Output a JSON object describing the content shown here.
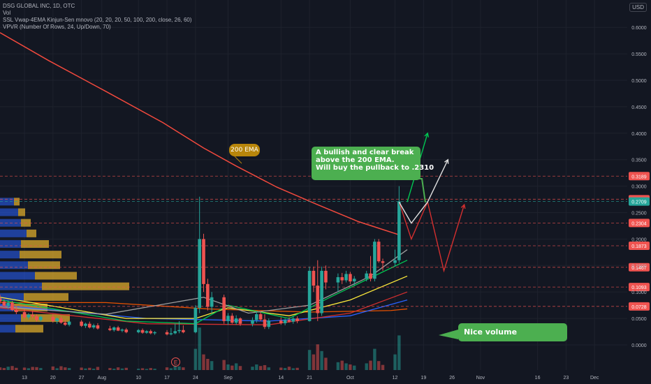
{
  "header": {
    "symbol_line": "DSG GLOBAL INC, 1D, OTC",
    "vol_label": "Vol",
    "ssl_label": "SSL Vwap-4EMA Kinjun-Sen mnovo (20, 20, 20, 50, 100, 200, close, 26, 60)",
    "vpvr_label": "VPVR (Number Of Rows, 24, Up/Down, 70)",
    "currency": "USD"
  },
  "annotations": {
    "ema_tag": "200 EMA",
    "callout_lines": [
      "A bullish and clear break",
      "above the 200 EMA.",
      "Will buy the pullback to .2310"
    ],
    "volume_note": "Nice volume",
    "earnings_marker": "E"
  },
  "colors": {
    "background": "#131722",
    "up": "#26a69a",
    "down": "#ef5350",
    "ema200": "#f2493d",
    "callout_bg": "#4caf50",
    "ema_tag_bg": "#b8860b"
  },
  "chart_data": {
    "type": "candlestick",
    "title": "DSG GLOBAL INC, 1D, OTC",
    "ylim": [
      -0.05,
      0.65
    ],
    "y_ticks": [
      "0.6000",
      "0.5500",
      "0.5000",
      "0.4500",
      "0.4000",
      "0.3500",
      "0.3000",
      "0.2500",
      "0.2000",
      "0.1500",
      "0.1000",
      "0.0500",
      "0.0000"
    ],
    "y_tick_values": [
      0.6,
      0.55,
      0.5,
      0.45,
      0.4,
      0.35,
      0.3,
      0.25,
      0.2,
      0.15,
      0.1,
      0.05,
      0.0
    ],
    "x_ticks": [
      "13",
      "20",
      "27",
      "Aug",
      "10",
      "17",
      "24",
      "Sep",
      "14",
      "21",
      "Oct",
      "12",
      "19",
      "26",
      "Nov",
      "16",
      "23",
      "Dec"
    ],
    "x_tick_days": [
      0,
      7,
      14,
      19,
      28,
      35,
      42,
      50,
      63,
      70,
      80,
      91,
      98,
      105,
      112,
      126,
      133,
      140
    ],
    "price_levels": [
      {
        "label": "0.3189",
        "value": 0.3189,
        "color": "#ef5350"
      },
      {
        "label": "0.2753",
        "value": 0.2753,
        "color": "#ef5350"
      },
      {
        "label": "0.2709",
        "value": 0.2709,
        "color": "#26a69a"
      },
      {
        "label": "0.2304",
        "value": 0.2304,
        "color": "#ef5350"
      },
      {
        "label": "0.1873",
        "value": 0.1873,
        "color": "#ef5350"
      },
      {
        "label": "0.1467",
        "value": 0.1467,
        "color": "#ef5350"
      },
      {
        "label": "0.1093",
        "value": 0.1093,
        "color": "#ef5350"
      },
      {
        "label": "0.0728",
        "value": 0.0728,
        "color": "#ef5350"
      }
    ],
    "candles": [
      {
        "d": -6,
        "o": 0.088,
        "h": 0.095,
        "l": 0.078,
        "c": 0.082
      },
      {
        "d": -5,
        "o": 0.082,
        "h": 0.086,
        "l": 0.07,
        "c": 0.074
      },
      {
        "d": -4,
        "o": 0.074,
        "h": 0.084,
        "l": 0.068,
        "c": 0.08
      },
      {
        "d": -3,
        "o": 0.08,
        "h": 0.083,
        "l": 0.064,
        "c": 0.066
      },
      {
        "d": -2,
        "o": 0.066,
        "h": 0.072,
        "l": 0.058,
        "c": 0.062
      },
      {
        "d": 0,
        "o": 0.062,
        "h": 0.068,
        "l": 0.05,
        "c": 0.052
      },
      {
        "d": 1,
        "o": 0.052,
        "h": 0.06,
        "l": 0.048,
        "c": 0.057
      },
      {
        "d": 2,
        "o": 0.057,
        "h": 0.064,
        "l": 0.05,
        "c": 0.054
      },
      {
        "d": 3,
        "o": 0.054,
        "h": 0.058,
        "l": 0.044,
        "c": 0.047
      },
      {
        "d": 4,
        "o": 0.047,
        "h": 0.055,
        "l": 0.044,
        "c": 0.053
      },
      {
        "d": 7,
        "o": 0.053,
        "h": 0.058,
        "l": 0.042,
        "c": 0.045
      },
      {
        "d": 8,
        "o": 0.045,
        "h": 0.052,
        "l": 0.04,
        "c": 0.05
      },
      {
        "d": 9,
        "o": 0.05,
        "h": 0.054,
        "l": 0.04,
        "c": 0.042
      },
      {
        "d": 10,
        "o": 0.042,
        "h": 0.048,
        "l": 0.036,
        "c": 0.038
      },
      {
        "d": 11,
        "o": 0.038,
        "h": 0.046,
        "l": 0.035,
        "c": 0.044
      },
      {
        "d": 14,
        "o": 0.044,
        "h": 0.047,
        "l": 0.034,
        "c": 0.036
      },
      {
        "d": 15,
        "o": 0.036,
        "h": 0.042,
        "l": 0.032,
        "c": 0.04
      },
      {
        "d": 16,
        "o": 0.04,
        "h": 0.044,
        "l": 0.031,
        "c": 0.033
      },
      {
        "d": 17,
        "o": 0.033,
        "h": 0.04,
        "l": 0.03,
        "c": 0.037
      },
      {
        "d": 18,
        "o": 0.037,
        "h": 0.041,
        "l": 0.029,
        "c": 0.031
      },
      {
        "d": 21,
        "o": 0.031,
        "h": 0.036,
        "l": 0.026,
        "c": 0.028
      },
      {
        "d": 22,
        "o": 0.028,
        "h": 0.035,
        "l": 0.025,
        "c": 0.033
      },
      {
        "d": 23,
        "o": 0.033,
        "h": 0.036,
        "l": 0.026,
        "c": 0.027
      },
      {
        "d": 24,
        "o": 0.027,
        "h": 0.031,
        "l": 0.024,
        "c": 0.029
      },
      {
        "d": 25,
        "o": 0.029,
        "h": 0.032,
        "l": 0.022,
        "c": 0.024
      },
      {
        "d": 28,
        "o": 0.024,
        "h": 0.03,
        "l": 0.022,
        "c": 0.028
      },
      {
        "d": 29,
        "o": 0.028,
        "h": 0.031,
        "l": 0.021,
        "c": 0.023
      },
      {
        "d": 30,
        "o": 0.023,
        "h": 0.028,
        "l": 0.021,
        "c": 0.026
      },
      {
        "d": 31,
        "o": 0.026,
        "h": 0.029,
        "l": 0.02,
        "c": 0.022
      },
      {
        "d": 32,
        "o": 0.022,
        "h": 0.026,
        "l": 0.019,
        "c": 0.024
      },
      {
        "d": 35,
        "o": 0.024,
        "h": 0.028,
        "l": 0.018,
        "c": 0.02
      },
      {
        "d": 36,
        "o": 0.02,
        "h": 0.032,
        "l": 0.018,
        "c": 0.022
      },
      {
        "d": 37,
        "o": 0.022,
        "h": 0.04,
        "l": 0.02,
        "c": 0.026
      },
      {
        "d": 38,
        "o": 0.026,
        "h": 0.045,
        "l": 0.022,
        "c": 0.028
      },
      {
        "d": 39,
        "o": 0.028,
        "h": 0.037,
        "l": 0.022,
        "c": 0.024
      },
      {
        "d": 42,
        "o": 0.024,
        "h": 0.075,
        "l": 0.022,
        "c": 0.07
      },
      {
        "d": 43,
        "o": 0.07,
        "h": 0.28,
        "l": 0.06,
        "c": 0.2
      },
      {
        "d": 44,
        "o": 0.2,
        "h": 0.21,
        "l": 0.1,
        "c": 0.115
      },
      {
        "d": 45,
        "o": 0.115,
        "h": 0.125,
        "l": 0.065,
        "c": 0.072
      },
      {
        "d": 46,
        "o": 0.072,
        "h": 0.1,
        "l": 0.06,
        "c": 0.09
      },
      {
        "d": 49,
        "o": 0.09,
        "h": 0.095,
        "l": 0.04,
        "c": 0.045
      },
      {
        "d": 50,
        "o": 0.045,
        "h": 0.06,
        "l": 0.038,
        "c": 0.055
      },
      {
        "d": 51,
        "o": 0.055,
        "h": 0.06,
        "l": 0.04,
        "c": 0.042
      },
      {
        "d": 52,
        "o": 0.042,
        "h": 0.056,
        "l": 0.038,
        "c": 0.05
      },
      {
        "d": 53,
        "o": 0.05,
        "h": 0.052,
        "l": 0.036,
        "c": 0.04
      },
      {
        "d": 56,
        "o": 0.04,
        "h": 0.052,
        "l": 0.035,
        "c": 0.047
      },
      {
        "d": 57,
        "o": 0.047,
        "h": 0.062,
        "l": 0.042,
        "c": 0.058
      },
      {
        "d": 58,
        "o": 0.058,
        "h": 0.062,
        "l": 0.045,
        "c": 0.048
      },
      {
        "d": 59,
        "o": 0.048,
        "h": 0.058,
        "l": 0.03,
        "c": 0.034
      },
      {
        "d": 60,
        "o": 0.034,
        "h": 0.05,
        "l": 0.03,
        "c": 0.046
      },
      {
        "d": 63,
        "o": 0.046,
        "h": 0.052,
        "l": 0.038,
        "c": 0.041
      },
      {
        "d": 64,
        "o": 0.041,
        "h": 0.05,
        "l": 0.037,
        "c": 0.047
      },
      {
        "d": 65,
        "o": 0.047,
        "h": 0.052,
        "l": 0.042,
        "c": 0.044
      },
      {
        "d": 66,
        "o": 0.044,
        "h": 0.054,
        "l": 0.04,
        "c": 0.05
      },
      {
        "d": 67,
        "o": 0.05,
        "h": 0.054,
        "l": 0.041,
        "c": 0.045
      },
      {
        "d": 70,
        "o": 0.045,
        "h": 0.148,
        "l": 0.044,
        "c": 0.14
      },
      {
        "d": 71,
        "o": 0.14,
        "h": 0.148,
        "l": 0.1,
        "c": 0.112
      },
      {
        "d": 72,
        "o": 0.112,
        "h": 0.16,
        "l": 0.045,
        "c": 0.06
      },
      {
        "d": 73,
        "o": 0.06,
        "h": 0.148,
        "l": 0.055,
        "c": 0.14
      },
      {
        "d": 74,
        "o": 0.14,
        "h": 0.15,
        "l": 0.105,
        "c": 0.118
      },
      {
        "d": 77,
        "o": 0.118,
        "h": 0.135,
        "l": 0.1,
        "c": 0.128
      },
      {
        "d": 78,
        "o": 0.128,
        "h": 0.136,
        "l": 0.115,
        "c": 0.122
      },
      {
        "d": 79,
        "o": 0.122,
        "h": 0.14,
        "l": 0.118,
        "c": 0.134
      },
      {
        "d": 80,
        "o": 0.134,
        "h": 0.138,
        "l": 0.115,
        "c": 0.12
      },
      {
        "d": 81,
        "o": 0.12,
        "h": 0.13,
        "l": 0.112,
        "c": 0.125
      },
      {
        "d": 84,
        "o": 0.125,
        "h": 0.14,
        "l": 0.12,
        "c": 0.135
      },
      {
        "d": 85,
        "o": 0.135,
        "h": 0.168,
        "l": 0.12,
        "c": 0.125
      },
      {
        "d": 86,
        "o": 0.125,
        "h": 0.2,
        "l": 0.12,
        "c": 0.195
      },
      {
        "d": 87,
        "o": 0.195,
        "h": 0.2,
        "l": 0.155,
        "c": 0.158
      },
      {
        "d": 88,
        "o": 0.158,
        "h": 0.163,
        "l": 0.14,
        "c": 0.155
      },
      {
        "d": 91,
        "o": 0.155,
        "h": 0.18,
        "l": 0.148,
        "c": 0.16
      },
      {
        "d": 92,
        "o": 0.16,
        "h": 0.3,
        "l": 0.155,
        "c": 0.271
      }
    ],
    "ema200": [
      {
        "d": -6,
        "v": 0.59
      },
      {
        "d": 6,
        "v": 0.537
      },
      {
        "d": 20,
        "v": 0.479
      },
      {
        "d": 34,
        "v": 0.42
      },
      {
        "d": 44,
        "v": 0.372
      },
      {
        "d": 52,
        "v": 0.338
      },
      {
        "d": 62,
        "v": 0.298
      },
      {
        "d": 72,
        "v": 0.265
      },
      {
        "d": 82,
        "v": 0.233
      },
      {
        "d": 88,
        "v": 0.218
      },
      {
        "d": 92,
        "v": 0.208
      }
    ],
    "volume_scale_max": 2500000,
    "volumes": [
      {
        "d": -6,
        "v": 120000
      },
      {
        "d": -5,
        "v": 90000
      },
      {
        "d": -4,
        "v": 150000
      },
      {
        "d": -3,
        "v": 180000
      },
      {
        "d": -2,
        "v": 100000
      },
      {
        "d": 0,
        "v": 110000
      },
      {
        "d": 1,
        "v": 80000
      },
      {
        "d": 2,
        "v": 140000
      },
      {
        "d": 3,
        "v": 130000
      },
      {
        "d": 4,
        "v": 90000
      },
      {
        "d": 7,
        "v": 160000
      },
      {
        "d": 8,
        "v": 80000
      },
      {
        "d": 9,
        "v": 170000
      },
      {
        "d": 10,
        "v": 120000
      },
      {
        "d": 11,
        "v": 90000
      },
      {
        "d": 14,
        "v": 110000
      },
      {
        "d": 15,
        "v": 70000
      },
      {
        "d": 16,
        "v": 100000
      },
      {
        "d": 17,
        "v": 60000
      },
      {
        "d": 18,
        "v": 140000
      },
      {
        "d": 21,
        "v": 90000
      },
      {
        "d": 22,
        "v": 60000
      },
      {
        "d": 23,
        "v": 120000
      },
      {
        "d": 24,
        "v": 70000
      },
      {
        "d": 25,
        "v": 100000
      },
      {
        "d": 28,
        "v": 60000
      },
      {
        "d": 29,
        "v": 80000
      },
      {
        "d": 30,
        "v": 50000
      },
      {
        "d": 31,
        "v": 90000
      },
      {
        "d": 32,
        "v": 60000
      },
      {
        "d": 35,
        "v": 120000
      },
      {
        "d": 36,
        "v": 80000
      },
      {
        "d": 37,
        "v": 200000
      },
      {
        "d": 38,
        "v": 160000
      },
      {
        "d": 39,
        "v": 120000
      },
      {
        "d": 42,
        "v": 950000
      },
      {
        "d": 43,
        "v": 1900000
      },
      {
        "d": 44,
        "v": 700000
      },
      {
        "d": 45,
        "v": 500000
      },
      {
        "d": 46,
        "v": 400000
      },
      {
        "d": 49,
        "v": 450000
      },
      {
        "d": 50,
        "v": 250000
      },
      {
        "d": 51,
        "v": 200000
      },
      {
        "d": 52,
        "v": 300000
      },
      {
        "d": 53,
        "v": 180000
      },
      {
        "d": 56,
        "v": 150000
      },
      {
        "d": 57,
        "v": 250000
      },
      {
        "d": 58,
        "v": 180000
      },
      {
        "d": 59,
        "v": 220000
      },
      {
        "d": 60,
        "v": 120000
      },
      {
        "d": 63,
        "v": 110000
      },
      {
        "d": 64,
        "v": 90000
      },
      {
        "d": 65,
        "v": 150000
      },
      {
        "d": 66,
        "v": 80000
      },
      {
        "d": 67,
        "v": 100000
      },
      {
        "d": 70,
        "v": 900000
      },
      {
        "d": 71,
        "v": 700000
      },
      {
        "d": 72,
        "v": 1150000
      },
      {
        "d": 73,
        "v": 850000
      },
      {
        "d": 74,
        "v": 550000
      },
      {
        "d": 77,
        "v": 350000
      },
      {
        "d": 78,
        "v": 420000
      },
      {
        "d": 79,
        "v": 300000
      },
      {
        "d": 80,
        "v": 250000
      },
      {
        "d": 81,
        "v": 200000
      },
      {
        "d": 84,
        "v": 300000
      },
      {
        "d": 85,
        "v": 420000
      },
      {
        "d": 86,
        "v": 950000
      },
      {
        "d": 87,
        "v": 400000
      },
      {
        "d": 88,
        "v": 230000
      },
      {
        "d": 91,
        "v": 700000
      },
      {
        "d": 92,
        "v": 1550000
      }
    ]
  }
}
